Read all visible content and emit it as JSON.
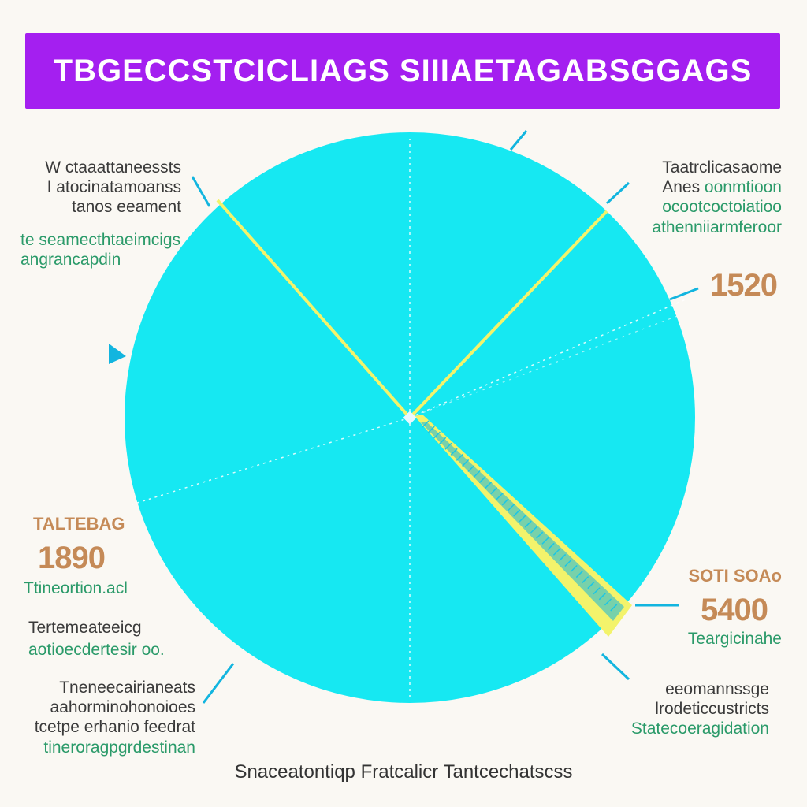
{
  "title": "TBGECCSTCICLIAGS SIIIAETAGABSGGAGS",
  "colors": {
    "title_bg": "#a41ff0",
    "pie": "#16e8f2",
    "highlight": "#f3f36b",
    "accent_blue": "#12b5df",
    "text_green": "#2a9a69",
    "text_tan": "#c58a57"
  },
  "annotations": {
    "top_left": {
      "lines": [
        "W ctaaattaneessts",
        "I atocinatamoanss",
        "tanos eeament"
      ],
      "sub_lines": [
        "te seamecthtaeimcigs",
        "angrancapdin"
      ]
    },
    "top_right": {
      "lines": [
        "Taatrclicasaome",
        "Anes"
      ],
      "sub_inline": "oonmtioon",
      "sub_lines": [
        "ocootcoctoiatioo",
        "athenniiarmferoor"
      ]
    },
    "value_1520": "1520",
    "mid_left": {
      "label": "TALTEBAG",
      "value": "1890",
      "sub": "Ttineortion.acl"
    },
    "lower_left": {
      "line": "Tertemeateeicg",
      "sub": "aotioecdertesir oo."
    },
    "mid_right": {
      "label": "SOTI SOAo",
      "value": "5400",
      "sub": "Teargicinahe"
    },
    "bottom_left": {
      "lines": [
        "Tneneecairianeats",
        "aahorminohonoioes",
        "tcetpe erhanio feedrat"
      ],
      "sub": "tineroragpgrdestinan"
    },
    "bottom_right": {
      "lines": [
        "eeomannssge",
        "lrodeticcustricts"
      ],
      "sub": "Statecoeragidation"
    },
    "footer": "Snaceatontiqp Fratcalicr Tantcechatscss"
  },
  "chart_data": {
    "type": "pie",
    "title": "TBGECCSTCICLIAGS SIIIAETAGABSGGAGS",
    "slices": [
      {
        "label": "",
        "value": 1520
      },
      {
        "label": "TALTEBAG",
        "value": 1890
      },
      {
        "label": "SOTI SOAo",
        "value": 5400
      }
    ],
    "legend": "none",
    "grid": false
  }
}
